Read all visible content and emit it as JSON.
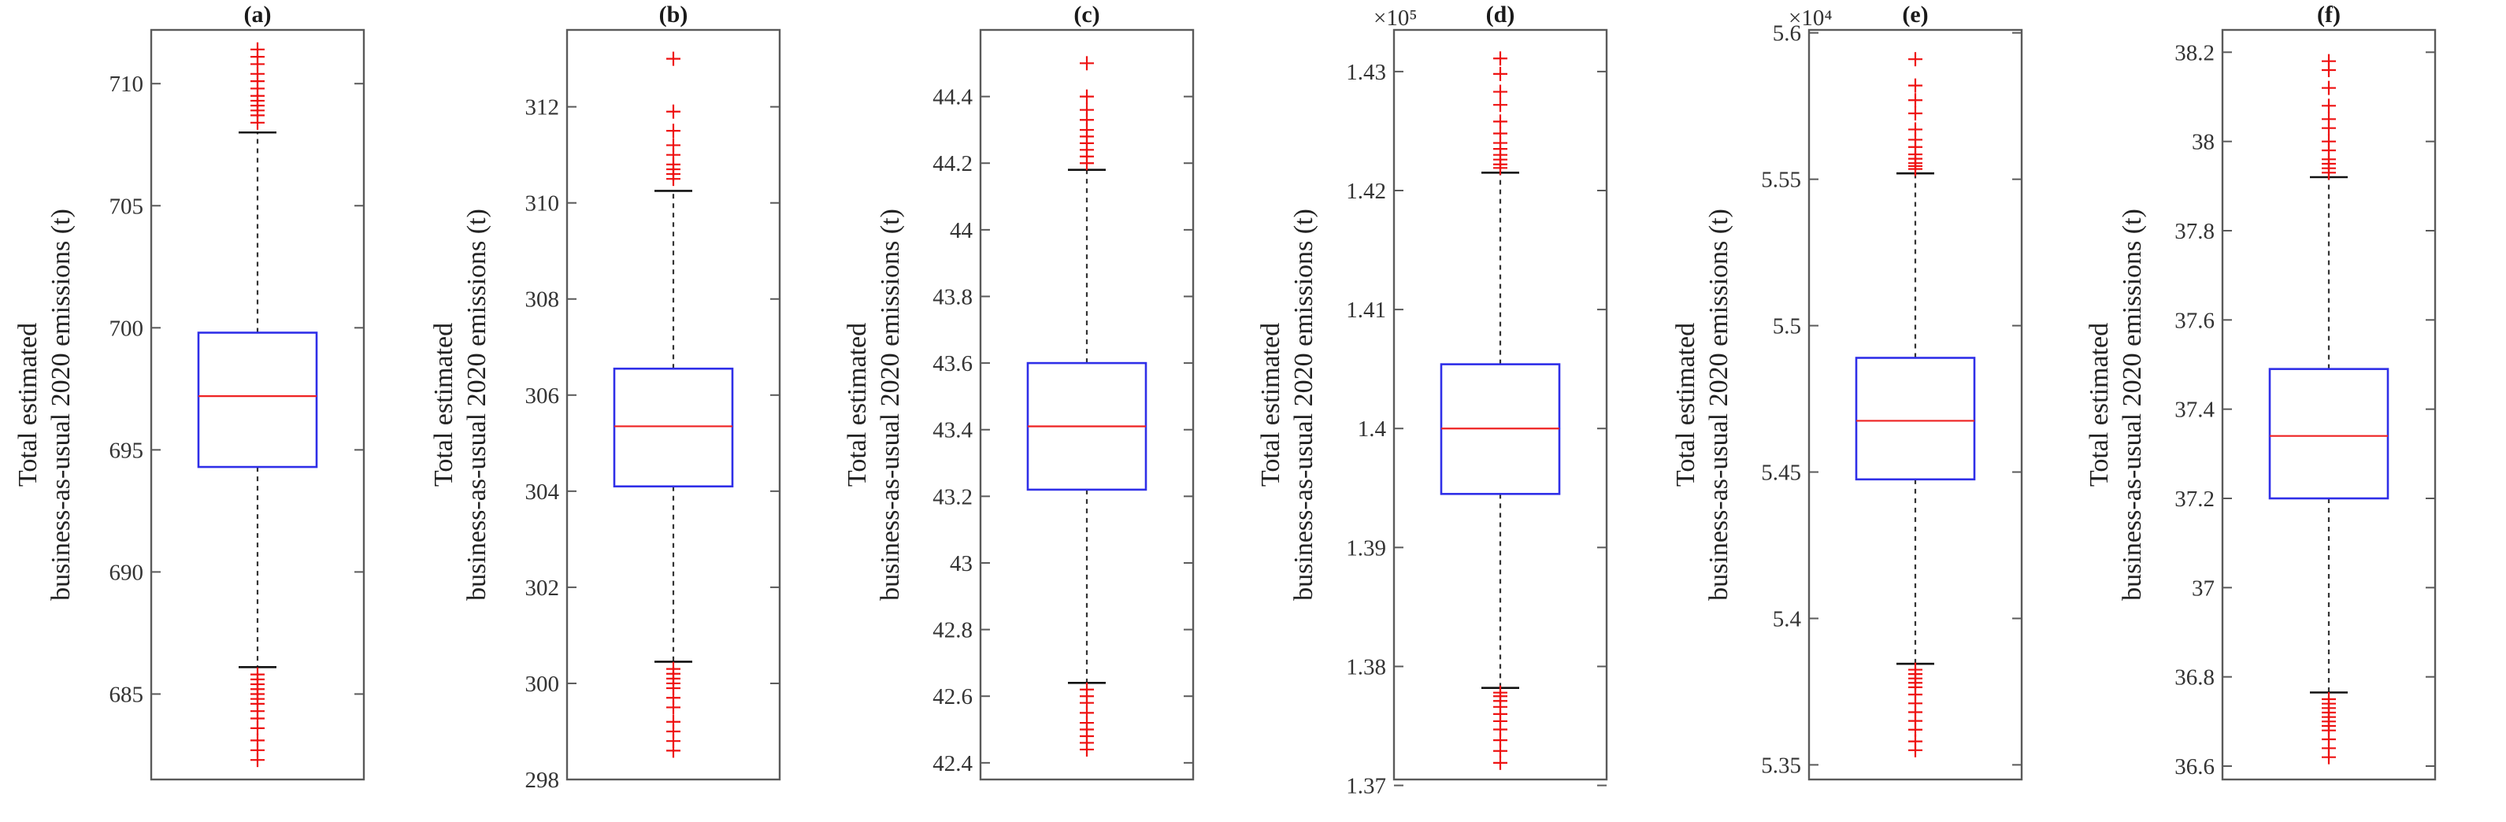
{
  "figure": {
    "ylabel_line1": "Total estimated",
    "ylabel_line2": "business-as-usual 2020 emissions (t)"
  },
  "colors": {
    "box": "#2f2fe8",
    "median": "#ee2222",
    "outlier": "#ee1111",
    "whisker": "#333333"
  },
  "chart_data": [
    {
      "type": "box",
      "title": "(a)",
      "ylabel": "Total estimated business-as-usual 2020 emissions (t)",
      "exponent": "",
      "ylim": [
        681.5,
        712.2
      ],
      "yticks": [
        685,
        690,
        695,
        700,
        705,
        710
      ],
      "ytick_labels": [
        "685",
        "690",
        "695",
        "700",
        "705",
        "710"
      ],
      "box": {
        "whisker_low": 686.1,
        "q1": 694.3,
        "median": 697.2,
        "q3": 699.8,
        "whisker_high": 708.0
      },
      "outliers": [
        685.0,
        685.2,
        685.4,
        685.6,
        685.8,
        684.8,
        684.6,
        684.3,
        684.0,
        683.6,
        683.1,
        682.7,
        682.3,
        708.4,
        708.7,
        708.9,
        709.1,
        709.3,
        709.5,
        709.8,
        710.1,
        710.4,
        710.8,
        711.1,
        711.4
      ]
    },
    {
      "type": "box",
      "title": "(b)",
      "ylabel": "Total estimated business-as-usual 2020 emissions (t)",
      "exponent": "",
      "ylim": [
        298.0,
        313.6
      ],
      "yticks": [
        298,
        300,
        302,
        304,
        306,
        308,
        310,
        312
      ],
      "ytick_labels": [
        "298",
        "300",
        "302",
        "304",
        "306",
        "308",
        "310",
        "312"
      ],
      "box": {
        "whisker_low": 300.45,
        "q1": 304.1,
        "median": 305.35,
        "q3": 306.55,
        "whisker_high": 310.25
      },
      "outliers": [
        300.3,
        300.2,
        300.1,
        300.0,
        299.9,
        299.7,
        299.5,
        299.2,
        299.0,
        298.8,
        298.6,
        310.5,
        310.6,
        310.7,
        310.8,
        311.0,
        311.2,
        311.5,
        311.9,
        313.0
      ]
    },
    {
      "type": "box",
      "title": "(c)",
      "ylabel": "Total estimated business-as-usual 2020 emissions (t)",
      "exponent": "",
      "ylim": [
        42.35,
        44.6
      ],
      "yticks": [
        42.4,
        42.6,
        42.8,
        43.0,
        43.2,
        43.4,
        43.6,
        43.8,
        44.0,
        44.2,
        44.4
      ],
      "ytick_labels": [
        "42.4",
        "42.6",
        "42.8",
        "43",
        "43.2",
        "43.4",
        "43.6",
        "43.8",
        "44",
        "44.2",
        "44.4"
      ],
      "box": {
        "whisker_low": 42.64,
        "q1": 43.22,
        "median": 43.41,
        "q3": 43.6,
        "whisker_high": 44.18
      },
      "outliers": [
        42.62,
        42.6,
        42.58,
        42.55,
        42.52,
        42.5,
        42.48,
        42.46,
        42.44,
        44.2,
        44.22,
        44.24,
        44.26,
        44.28,
        44.3,
        44.33,
        44.36,
        44.4,
        44.5
      ]
    },
    {
      "type": "box",
      "title": "(d)",
      "ylabel": "Total estimated business-as-usual 2020 emissions (t)",
      "exponent": "×10⁵",
      "ylim": [
        1.3705,
        1.4335
      ],
      "yticks": [
        1.37,
        1.38,
        1.39,
        1.4,
        1.41,
        1.42,
        1.43
      ],
      "ytick_labels": [
        "1.37",
        "1.38",
        "1.39",
        "1.4",
        "1.41",
        "1.42",
        "1.43"
      ],
      "box": {
        "whisker_low": 1.3782,
        "q1": 1.3945,
        "median": 1.4,
        "q3": 1.4054,
        "whisker_high": 1.4215
      },
      "outliers": [
        1.3778,
        1.3775,
        1.3771,
        1.3766,
        1.376,
        1.3754,
        1.3747,
        1.3738,
        1.3729,
        1.3719,
        1.4219,
        1.4222,
        1.4226,
        1.423,
        1.4235,
        1.424,
        1.4248,
        1.4258,
        1.4272,
        1.4283,
        1.4298,
        1.4311
      ]
    },
    {
      "type": "box",
      "title": "(e)",
      "ylabel": "Total estimated business-as-usual 2020 emissions (t)",
      "exponent": "×10⁴",
      "ylim": [
        5.345,
        5.601
      ],
      "yticks": [
        5.35,
        5.4,
        5.45,
        5.5,
        5.55,
        5.6
      ],
      "ytick_labels": [
        "5.35",
        "5.4",
        "5.45",
        "5.5",
        "5.55",
        "5.6"
      ],
      "box": {
        "whisker_low": 5.3845,
        "q1": 5.4475,
        "median": 5.4675,
        "q3": 5.489,
        "whisker_high": 5.552
      },
      "outliers": [
        5.3825,
        5.381,
        5.3795,
        5.378,
        5.3765,
        5.374,
        5.371,
        5.368,
        5.365,
        5.362,
        5.358,
        5.355,
        5.5535,
        5.5545,
        5.5555,
        5.557,
        5.5585,
        5.561,
        5.5635,
        5.567,
        5.5725,
        5.577,
        5.582,
        5.591
      ]
    },
    {
      "type": "box",
      "title": "(f)",
      "ylabel": "Total estimated business-as-usual 2020 emissions (t)",
      "exponent": "",
      "ylim": [
        36.57,
        38.25
      ],
      "yticks": [
        36.6,
        36.8,
        37.0,
        37.2,
        37.4,
        37.6,
        37.8,
        38.0,
        38.2
      ],
      "ytick_labels": [
        "36.6",
        "36.8",
        "37",
        "37.2",
        "37.4",
        "37.6",
        "37.8",
        "38",
        "38.2"
      ],
      "box": {
        "whisker_low": 36.765,
        "q1": 37.2,
        "median": 37.34,
        "q3": 37.49,
        "whisker_high": 37.92
      },
      "outliers": [
        36.75,
        36.74,
        36.73,
        36.72,
        36.71,
        36.7,
        36.69,
        36.68,
        36.66,
        36.64,
        36.62,
        37.93,
        37.94,
        37.95,
        37.96,
        37.98,
        38.0,
        38.03,
        38.05,
        38.08,
        38.12,
        38.16,
        38.18
      ]
    }
  ]
}
